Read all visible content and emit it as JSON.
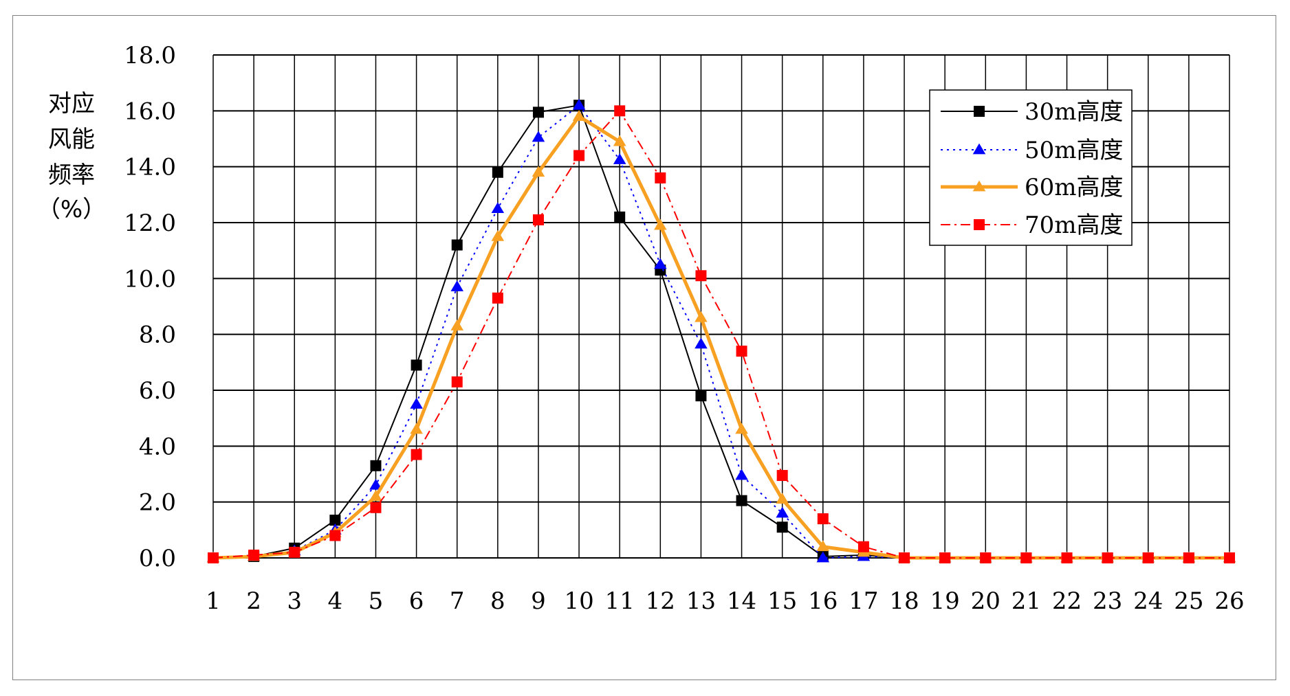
{
  "chart_data": {
    "type": "line",
    "title": "",
    "xlabel": "",
    "ylabel_lines": [
      "对应",
      "风能",
      "频率",
      "（%）"
    ],
    "categories": [
      "1",
      "2",
      "3",
      "4",
      "5",
      "6",
      "7",
      "8",
      "9",
      "10",
      "11",
      "12",
      "13",
      "14",
      "15",
      "16",
      "17",
      "18",
      "19",
      "20",
      "21",
      "22",
      "23",
      "24",
      "25",
      "26"
    ],
    "ylim": [
      0,
      18
    ],
    "yticks": [
      "0.0",
      "2.0",
      "4.0",
      "6.0",
      "8.0",
      "10.0",
      "12.0",
      "14.0",
      "16.0",
      "18.0"
    ],
    "grid": true,
    "legend_position": "top-right",
    "series": [
      {
        "name": "30m高度",
        "color": "#000000",
        "marker": "square",
        "dash": "solid",
        "width": 2,
        "values": [
          0.0,
          0.05,
          0.35,
          1.35,
          3.3,
          6.9,
          11.2,
          13.8,
          15.95,
          16.2,
          12.2,
          10.3,
          5.8,
          2.05,
          1.1,
          0.05,
          0.1,
          0.0,
          0.0,
          0.0,
          0.0,
          0.0,
          0.0,
          0.0,
          0.0,
          0.0
        ]
      },
      {
        "name": "50m高度",
        "color": "#0000ff",
        "marker": "triangle",
        "dash": "dotted",
        "width": 2,
        "values": [
          0.0,
          0.05,
          0.25,
          1.0,
          2.6,
          5.5,
          9.7,
          12.5,
          15.05,
          16.2,
          14.25,
          10.5,
          7.65,
          2.95,
          1.6,
          0.0,
          0.05,
          0.0,
          0.0,
          0.0,
          0.0,
          0.0,
          0.0,
          0.0,
          0.0,
          0.0
        ]
      },
      {
        "name": "60m高度",
        "color": "#f7a021",
        "marker": "triangle",
        "dash": "solid",
        "width": 5,
        "values": [
          0.0,
          0.05,
          0.2,
          0.9,
          2.2,
          4.6,
          8.3,
          11.5,
          13.8,
          15.8,
          14.9,
          11.9,
          8.6,
          4.6,
          2.1,
          0.4,
          0.2,
          0.0,
          0.0,
          0.0,
          0.0,
          0.0,
          0.0,
          0.0,
          0.0,
          0.0
        ]
      },
      {
        "name": "70m高度",
        "color": "#ff0000",
        "marker": "square",
        "dash": "dashdot",
        "width": 2,
        "values": [
          0.0,
          0.1,
          0.2,
          0.8,
          1.8,
          3.7,
          6.3,
          9.3,
          12.1,
          14.4,
          16.0,
          13.6,
          10.1,
          7.4,
          2.95,
          1.4,
          0.4,
          0.0,
          0.0,
          0.0,
          0.0,
          0.0,
          0.0,
          0.0,
          0.0,
          0.0
        ]
      }
    ]
  }
}
